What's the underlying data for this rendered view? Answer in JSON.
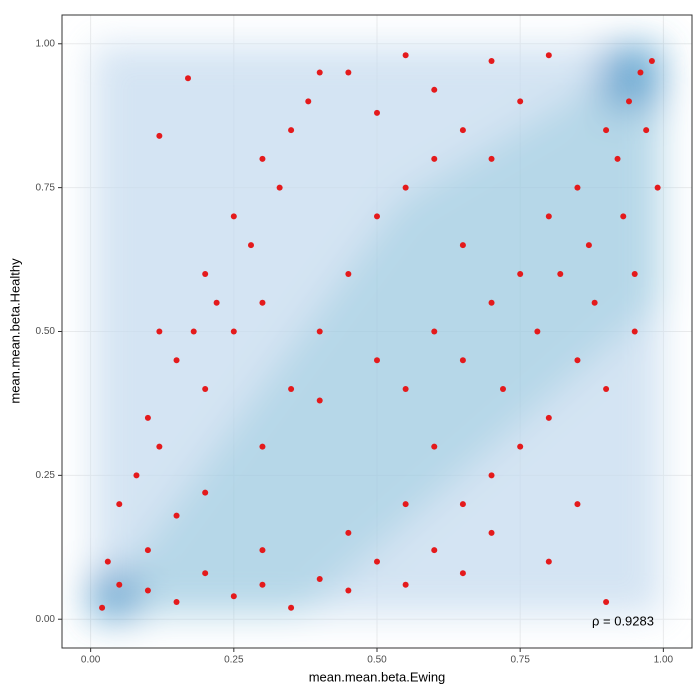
{
  "chart_data": {
    "type": "scatter",
    "x_label": "mean.mean.beta.Ewing",
    "y_label": "mean.mean.beta.Healthy",
    "annotation": "ρ = 0.9283",
    "color": "#e41a1c",
    "xlim": [
      -0.05,
      1.05
    ],
    "ylim": [
      -0.05,
      1.05
    ],
    "xticks": [
      {
        "value": 0,
        "label": "0.00"
      },
      {
        "value": 0.25,
        "label": "0.25"
      },
      {
        "value": 0.5,
        "label": "0.50"
      },
      {
        "value": 0.75,
        "label": "0.75"
      },
      {
        "value": 1,
        "label": "1.00"
      }
    ],
    "yticks": [
      {
        "value": 0,
        "label": "0.00"
      },
      {
        "value": 0.25,
        "label": "0.25"
      },
      {
        "value": 0.5,
        "label": "0.50"
      },
      {
        "value": 0.75,
        "label": "0.75"
      },
      {
        "value": 1,
        "label": "1.00"
      }
    ],
    "grid": true,
    "x": [
      0.02,
      0.05,
      0.1,
      0.15,
      0.2,
      0.3,
      0.4,
      0.5,
      0.55,
      0.6,
      0.65,
      0.7,
      0.72,
      0.75,
      0.78,
      0.8,
      0.82,
      0.85,
      0.87,
      0.9,
      0.92,
      0.94,
      0.96,
      0.98,
      0.88,
      0.93,
      0.95,
      0.97,
      0.85,
      0.8,
      0.75,
      0.7,
      0.65,
      0.9,
      0.95,
      0.99,
      0.1,
      0.15,
      0.2,
      0.25,
      0.3,
      0.35,
      0.4,
      0.45,
      0.5,
      0.55,
      0.6,
      0.65,
      0.7,
      0.8,
      0.85,
      0.9,
      0.3,
      0.45,
      0.55,
      0.6,
      0.03,
      0.05,
      0.08,
      0.1,
      0.12,
      0.15,
      0.18,
      0.2,
      0.22,
      0.25,
      0.28,
      0.3,
      0.33,
      0.35,
      0.38,
      0.4,
      0.12,
      0.2,
      0.25,
      0.3,
      0.17,
      0.12,
      0.45,
      0.5,
      0.55,
      0.6,
      0.65,
      0.7,
      0.75,
      0.8,
      0.5,
      0.45,
      0.55,
      0.6,
      0.4,
      0.35,
      0.65,
      0.7
    ],
    "values": [
      0.02,
      0.06,
      0.12,
      0.18,
      0.22,
      0.3,
      0.38,
      0.45,
      0.4,
      0.5,
      0.45,
      0.55,
      0.4,
      0.6,
      0.5,
      0.7,
      0.6,
      0.75,
      0.65,
      0.85,
      0.8,
      0.9,
      0.95,
      0.97,
      0.55,
      0.7,
      0.6,
      0.85,
      0.45,
      0.35,
      0.3,
      0.25,
      0.2,
      0.4,
      0.5,
      0.75,
      0.05,
      0.03,
      0.08,
      0.04,
      0.06,
      0.02,
      0.07,
      0.05,
      0.1,
      0.06,
      0.12,
      0.08,
      0.15,
      0.1,
      0.2,
      0.03,
      0.12,
      0.15,
      0.2,
      0.3,
      0.1,
      0.2,
      0.25,
      0.35,
      0.3,
      0.45,
      0.5,
      0.6,
      0.55,
      0.7,
      0.65,
      0.8,
      0.75,
      0.85,
      0.9,
      0.95,
      0.5,
      0.4,
      0.5,
      0.55,
      0.94,
      0.84,
      0.95,
      0.88,
      0.98,
      0.92,
      0.85,
      0.97,
      0.9,
      0.98,
      0.7,
      0.6,
      0.75,
      0.8,
      0.5,
      0.4,
      0.65,
      0.8
    ]
  }
}
